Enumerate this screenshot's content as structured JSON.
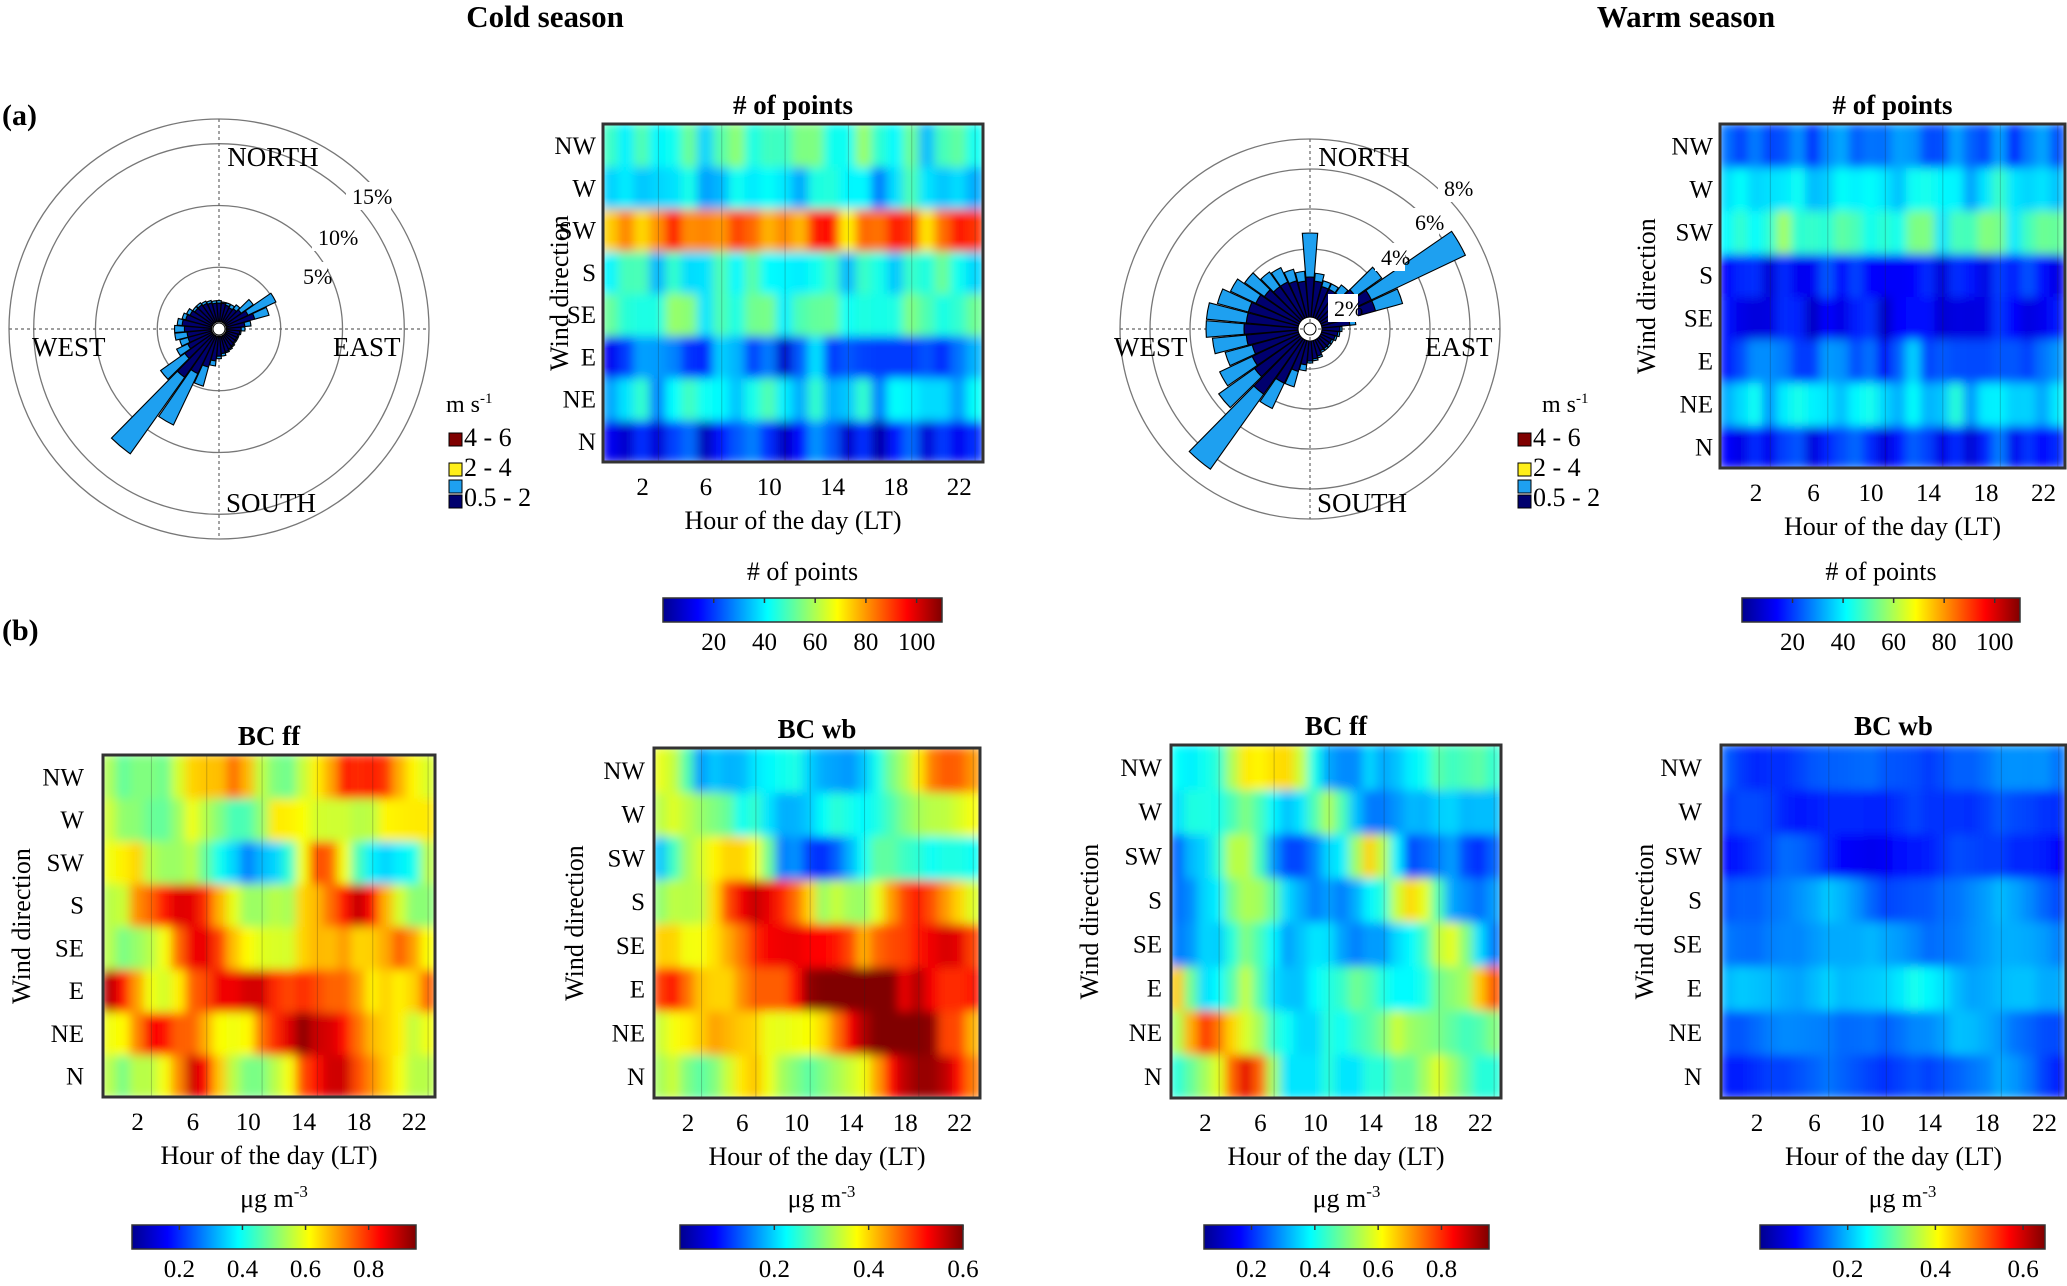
{
  "seasons": {
    "cold": "Cold season",
    "warm": "Warm season"
  },
  "panel_labels": {
    "a": "(a)",
    "b": "(b)"
  },
  "common": {
    "wind_dir_labels": [
      "NW",
      "W",
      "SW",
      "S",
      "SE",
      "E",
      "NE",
      "N"
    ],
    "hour_ticks": [
      "2",
      "6",
      "10",
      "14",
      "18",
      "22"
    ],
    "xlabel": "Hour of the day (LT)",
    "ylabel": "Wind direction"
  },
  "rose_compass": {
    "north": "NORTH",
    "south": "SOUTH",
    "east": "EAST",
    "west": "WEST"
  },
  "rose_legend": {
    "title_base": "m s",
    "title_exp": "-1",
    "entries": [
      {
        "label": "4 - 6",
        "color": "#7f0000"
      },
      {
        "label": "2 - 4",
        "color": "#ffef1a"
      },
      {
        "label": "0.5 - 2",
        "color": "#0f97e6",
        "note": ""
      }
    ],
    "entry_colors_order": [
      "#7f0000",
      "#ffef1a",
      "#1ea0f0",
      "#00006e"
    ],
    "entry_labels": [
      "4 - 6",
      "2 - 4",
      "0.5 - 2"
    ],
    "entry_label_colors_note": ""
  },
  "chart_data": [
    {
      "id": "cold_rose",
      "type": "windrose",
      "title": "",
      "ring_labels": [
        "5%",
        "10%",
        "15%"
      ],
      "ring_values": [
        5,
        10,
        15
      ],
      "rmax": 17,
      "directions_deg": [
        0,
        10,
        20,
        30,
        40,
        50,
        60,
        70,
        80,
        90,
        100,
        110,
        120,
        130,
        140,
        150,
        160,
        170,
        180,
        190,
        200,
        210,
        220,
        230,
        240,
        250,
        260,
        270,
        280,
        290,
        300,
        310,
        320,
        330,
        340,
        350
      ],
      "speed_bins": [
        "0.5 - 2",
        "2 - 4",
        "4 - 6"
      ],
      "values_pct": {
        "0.5 - 2": [
          1.5,
          1.5,
          1.4,
          1.3,
          1.4,
          1.6,
          2.0,
          2.4,
          1.5,
          1.2,
          1.1,
          1.0,
          1.0,
          1.0,
          1.1,
          1.2,
          1.3,
          1.4,
          1.6,
          2.0,
          2.6,
          3.4,
          4.2,
          2.8,
          2.2,
          2.0,
          2.0,
          2.2,
          2.4,
          2.2,
          2.0,
          1.8,
          1.8,
          1.7,
          1.6,
          1.5
        ],
        "2 - 4": [
          0.2,
          0.1,
          0.2,
          0.3,
          0.4,
          1.2,
          2.5,
          1.2,
          0.5,
          0.3,
          0.1,
          0.1,
          0.1,
          0.1,
          0.1,
          0.1,
          0.1,
          0.2,
          0.2,
          0.4,
          1.6,
          4.6,
          7.6,
          2.4,
          1.0,
          0.7,
          1.0,
          0.8,
          0.4,
          0.3,
          0.3,
          0.2,
          0.2,
          0.2,
          0.2,
          0.2
        ],
        "4 - 6": [
          0,
          0,
          0,
          0,
          0,
          0,
          0,
          0,
          0,
          0,
          0,
          0,
          0,
          0,
          0,
          0,
          0,
          0,
          0,
          0,
          0,
          0,
          0,
          0,
          0,
          0,
          0,
          0,
          0,
          0,
          0,
          0,
          0,
          0,
          0,
          0
        ]
      }
    },
    {
      "id": "cold_points",
      "type": "heatmap",
      "title": "# of points",
      "y_categories": [
        "N",
        "NE",
        "E",
        "SE",
        "S",
        "SW",
        "W",
        "NW"
      ],
      "x_hours": [
        0,
        1,
        2,
        3,
        4,
        5,
        6,
        7,
        8,
        9,
        10,
        11,
        12,
        13,
        14,
        15,
        16,
        17,
        18,
        19,
        20,
        21,
        22,
        23
      ],
      "colorbar": {
        "label": "# of points",
        "range": [
          0,
          110
        ],
        "ticks": [
          "20",
          "40",
          "60",
          "80",
          "100"
        ]
      },
      "row_levels": [
        12,
        34,
        18,
        44,
        38,
        78,
        34,
        42
      ],
      "hour_modulation": [
        0,
        -4,
        6,
        -3,
        8,
        12,
        -6,
        4,
        10,
        14,
        6,
        -5,
        3,
        16,
        10,
        -4,
        6,
        -8,
        4,
        12,
        -3,
        7,
        0,
        6
      ]
    },
    {
      "id": "warm_rose",
      "type": "windrose",
      "title": "",
      "ring_labels": [
        "2%",
        "4%",
        "6%",
        "8%"
      ],
      "ring_values": [
        2,
        4,
        6,
        8
      ],
      "rmax": 9.5,
      "directions_deg": [
        0,
        10,
        20,
        30,
        40,
        50,
        60,
        70,
        80,
        90,
        100,
        110,
        120,
        130,
        140,
        150,
        160,
        170,
        180,
        190,
        200,
        210,
        220,
        230,
        240,
        250,
        260,
        270,
        280,
        290,
        300,
        310,
        320,
        330,
        340,
        350
      ],
      "speed_bins": [
        "0.5 - 2",
        "2 - 4",
        "4 - 6"
      ],
      "values_pct": {
        "0.5 - 2": [
          2.0,
          1.8,
          1.6,
          1.6,
          1.6,
          2.2,
          2.8,
          2.8,
          1.4,
          0.9,
          0.8,
          0.7,
          0.6,
          0.6,
          0.6,
          0.6,
          0.8,
          0.9,
          1.0,
          1.2,
          1.6,
          2.4,
          3.4,
          2.8,
          2.6,
          2.4,
          2.6,
          2.7,
          2.6,
          2.6,
          2.4,
          2.2,
          2.0,
          2.0,
          1.9,
          1.8
        ],
        "2 - 4": [
          2.2,
          0.4,
          0.3,
          0.3,
          0.5,
          1.6,
          5.2,
          1.4,
          0.3,
          0.1,
          0.1,
          0.1,
          0.1,
          0.1,
          0.1,
          0.1,
          0.1,
          0.1,
          0.1,
          0.3,
          0.8,
          1.4,
          4.6,
          2.2,
          1.8,
          1.4,
          1.7,
          1.9,
          2.0,
          1.6,
          1.4,
          1.2,
          0.9,
          0.8,
          0.6,
          0.5
        ],
        "4 - 6": [
          0,
          0,
          0,
          0,
          0,
          0,
          0,
          0,
          0,
          0,
          0,
          0,
          0,
          0,
          0,
          0,
          0,
          0,
          0,
          0,
          0,
          0,
          0,
          0,
          0,
          0,
          0,
          0,
          0,
          0,
          0,
          0,
          0,
          0,
          0,
          0
        ]
      }
    },
    {
      "id": "warm_points",
      "type": "heatmap",
      "title": "# of points",
      "y_categories": [
        "N",
        "NE",
        "E",
        "SE",
        "S",
        "SW",
        "W",
        "NW"
      ],
      "x_hours": [
        0,
        1,
        2,
        3,
        4,
        5,
        6,
        7,
        8,
        9,
        10,
        11,
        12,
        13,
        14,
        15,
        16,
        17,
        18,
        19,
        20,
        21,
        22,
        23
      ],
      "colorbar": {
        "label": "# of points",
        "range": [
          0,
          110
        ],
        "ticks": [
          "20",
          "40",
          "60",
          "80",
          "100"
        ]
      },
      "row_levels": [
        14,
        34,
        20,
        10,
        12,
        44,
        36,
        22
      ],
      "hour_modulation": [
        0,
        -3,
        4,
        -2,
        6,
        8,
        -4,
        3,
        7,
        10,
        4,
        -4,
        2,
        9,
        6,
        -3,
        4,
        -5,
        3,
        12,
        -2,
        5,
        0,
        4
      ]
    },
    {
      "id": "cold_bcff",
      "type": "heatmap",
      "title": "BC ff",
      "y_categories": [
        "N",
        "NE",
        "E",
        "SE",
        "S",
        "SW",
        "W",
        "NW"
      ],
      "x_hours": [
        0,
        1,
        2,
        3,
        4,
        5,
        6,
        7,
        8,
        9,
        10,
        11,
        12,
        13,
        14,
        15,
        16,
        17,
        18,
        19,
        20,
        21,
        22,
        23
      ],
      "colorbar": {
        "label_base": "μg m",
        "label_exp": "-3",
        "range": [
          0.05,
          0.95
        ],
        "ticks": [
          "0.2",
          "0.4",
          "0.6",
          "0.8"
        ]
      },
      "row_levels": [
        0.55,
        0.6,
        0.6,
        0.55,
        0.55,
        0.35,
        0.45,
        0.5
      ],
      "hour_modulation": [
        0.0,
        -0.05,
        0.0,
        0.0,
        0.05,
        0.15,
        0.3,
        0.25,
        0.1,
        0.0,
        -0.05,
        -0.05,
        0.0,
        0.05,
        0.2,
        0.25,
        0.3,
        0.3,
        0.2,
        0.15,
        0.1,
        0.05,
        0.0,
        0.0
      ]
    },
    {
      "id": "cold_bcwb",
      "type": "heatmap",
      "title": "BC wb",
      "y_categories": [
        "N",
        "NE",
        "E",
        "SE",
        "S",
        "SW",
        "W",
        "NW"
      ],
      "x_hours": [
        0,
        1,
        2,
        3,
        4,
        5,
        6,
        7,
        8,
        9,
        10,
        11,
        12,
        13,
        14,
        15,
        16,
        17,
        18,
        19,
        20,
        21,
        22,
        23
      ],
      "colorbar": {
        "label_base": "μg m",
        "label_exp": "-3",
        "range": [
          0.0,
          0.6
        ],
        "ticks": [
          "0.2",
          "0.4",
          "0.6"
        ]
      },
      "row_levels": [
        0.3,
        0.35,
        0.4,
        0.38,
        0.3,
        0.12,
        0.18,
        0.16
      ],
      "hour_modulation": [
        0.02,
        0.04,
        0.0,
        -0.02,
        0.0,
        0.04,
        0.08,
        0.1,
        0.06,
        0.02,
        0.0,
        -0.02,
        0.0,
        0.02,
        0.04,
        0.06,
        0.12,
        0.2,
        0.24,
        0.26,
        0.26,
        0.24,
        0.2,
        0.14
      ]
    },
    {
      "id": "warm_bcff",
      "type": "heatmap",
      "title": "BC ff",
      "y_categories": [
        "N",
        "NE",
        "E",
        "SE",
        "S",
        "SW",
        "W",
        "NW"
      ],
      "x_hours": [
        0,
        1,
        2,
        3,
        4,
        5,
        6,
        7,
        8,
        9,
        10,
        11,
        12,
        13,
        14,
        15,
        16,
        17,
        18,
        19,
        20,
        21,
        22,
        23
      ],
      "colorbar": {
        "label_base": "μg m",
        "label_exp": "-3",
        "range": [
          0.05,
          0.95
        ],
        "ticks": [
          "0.2",
          "0.4",
          "0.6",
          "0.8"
        ]
      },
      "row_levels": [
        0.42,
        0.42,
        0.36,
        0.3,
        0.3,
        0.25,
        0.3,
        0.35
      ],
      "hour_modulation": [
        0.0,
        0.05,
        0.1,
        0.15,
        0.3,
        0.4,
        0.3,
        0.1,
        -0.05,
        -0.05,
        -0.05,
        0.0,
        -0.05,
        -0.05,
        0.0,
        0.0,
        0.05,
        0.05,
        0.1,
        0.15,
        0.1,
        0.05,
        0.0,
        0.0
      ]
    },
    {
      "id": "warm_bcwb",
      "type": "heatmap",
      "title": "BC wb",
      "y_categories": [
        "N",
        "NE",
        "E",
        "SE",
        "S",
        "SW",
        "W",
        "NW"
      ],
      "x_hours": [
        0,
        1,
        2,
        3,
        4,
        5,
        6,
        7,
        8,
        9,
        10,
        11,
        12,
        13,
        14,
        15,
        16,
        17,
        18,
        19,
        20,
        21,
        22,
        23
      ],
      "colorbar": {
        "label_base": "μg m",
        "label_exp": "-3",
        "range": [
          0.0,
          0.65
        ],
        "ticks": [
          "0.2",
          "0.4",
          "0.6"
        ]
      },
      "row_levels": [
        0.1,
        0.12,
        0.16,
        0.14,
        0.12,
        0.06,
        0.08,
        0.1
      ],
      "hour_modulation": [
        0.0,
        0.0,
        0.01,
        0.02,
        0.02,
        0.03,
        0.04,
        0.05,
        0.04,
        0.03,
        0.02,
        0.01,
        0.02,
        0.03,
        0.02,
        0.03,
        0.04,
        0.05,
        0.06,
        0.08,
        0.07,
        0.05,
        0.02,
        0.0
      ]
    }
  ]
}
